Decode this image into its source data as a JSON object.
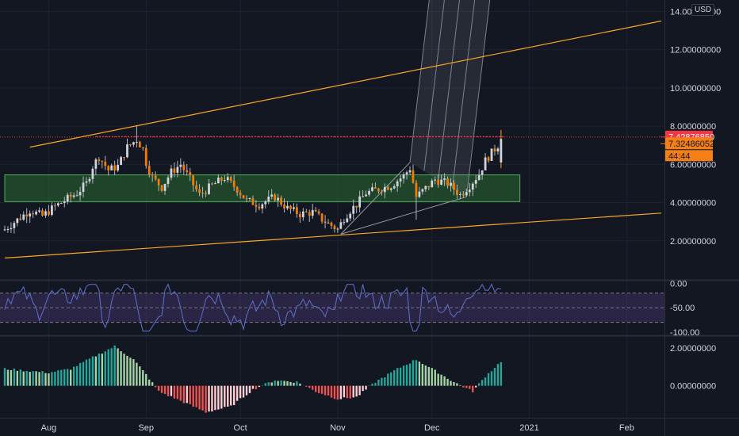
{
  "currency": "USD",
  "price_badges": {
    "last_price": "7.42876850",
    "prev_close": "7.32486052",
    "countdown": "44:44",
    "last_color": "#f23645",
    "prev_color": "#f57f17"
  },
  "chart_data": [
    {
      "type": "candlestick",
      "xticks": [
        "Aug",
        "Sep",
        "Oct",
        "Nov",
        "Dec",
        "2021",
        "Feb"
      ],
      "yticks": [
        "2.00000000",
        "4.00000000",
        "6.00000000",
        "8.00000000",
        "10.00000000",
        "12.00000000",
        "14.00000000"
      ],
      "ylim": [
        0,
        14.6
      ],
      "xrange": [
        "2020-07-18",
        "2021-02-10"
      ],
      "close_anchors": {
        "dates": [
          "2020-07-18",
          "2020-07-22",
          "2020-07-26",
          "2020-07-30",
          "2020-08-03",
          "2020-08-07",
          "2020-08-10",
          "2020-08-13",
          "2020-08-15",
          "2020-08-17",
          "2020-08-20",
          "2020-08-23",
          "2020-08-26",
          "2020-08-29",
          "2020-08-31",
          "2020-09-01",
          "2020-09-03",
          "2020-09-06",
          "2020-09-09",
          "2020-09-12",
          "2020-09-15",
          "2020-09-18",
          "2020-09-22",
          "2020-09-26",
          "2020-09-30",
          "2020-10-03",
          "2020-10-07",
          "2020-10-12",
          "2020-10-16",
          "2020-10-20",
          "2020-10-24",
          "2020-10-28",
          "2020-11-01",
          "2020-11-03",
          "2020-11-05",
          "2020-11-07",
          "2020-11-10",
          "2020-11-14",
          "2020-11-18",
          "2020-11-22",
          "2020-11-24",
          "2020-11-26",
          "2020-11-28",
          "2020-12-02",
          "2020-12-06",
          "2020-12-10",
          "2020-12-13",
          "2020-12-16",
          "2020-12-18",
          "2020-12-20",
          "2020-12-22",
          "2020-12-23"
        ],
        "values": [
          2.6,
          3.1,
          3.6,
          3.3,
          3.8,
          4.2,
          4.5,
          5.0,
          5.9,
          6.4,
          5.7,
          5.9,
          6.9,
          7.3,
          6.8,
          6.1,
          5.3,
          4.8,
          5.6,
          6.0,
          5.2,
          4.4,
          4.9,
          5.3,
          4.7,
          4.1,
          3.9,
          4.3,
          3.7,
          3.4,
          3.5,
          3.0,
          2.6,
          3.2,
          3.6,
          3.9,
          4.5,
          4.7,
          4.9,
          5.4,
          5.8,
          4.3,
          4.6,
          5.2,
          5.0,
          4.4,
          4.9,
          5.5,
          6.2,
          6.6,
          7.0,
          7.3
        ]
      },
      "last": {
        "open": 6.1,
        "high": 7.8,
        "low": 5.8,
        "close": 7.33
      },
      "horizontal_line": 7.4287685,
      "zone": [
        4.05,
        5.45
      ],
      "trendlines": [
        {
          "from": [
            "2020-07-26",
            6.9
          ],
          "to": [
            "2021-02-12",
            13.5
          ]
        },
        {
          "from": [
            "2020-07-18",
            1.1
          ],
          "to": [
            "2021-02-12",
            3.45
          ]
        },
        {
          "from": [
            "2020-08-16",
            7.45
          ],
          "to": [
            "2020-12-24",
            7.45
          ]
        }
      ],
      "pitchfork": {
        "pivots": [
          [
            "2020-11-24",
            6.1
          ],
          [
            "2020-11-02",
            2.35
          ],
          [
            "2020-12-12",
            4.3
          ]
        ],
        "end": "2021-02-12"
      }
    },
    {
      "type": "line",
      "yticks": [
        "0.00",
        "-50.00",
        "-100.00"
      ],
      "ylim": [
        -105,
        4
      ],
      "band": [
        -80,
        -20
      ],
      "series": [
        {
          "x": [],
          "values": []
        }
      ]
    },
    {
      "type": "bar",
      "yticks": [
        "2.00000000",
        "0.00000000"
      ],
      "ylim": [
        -1.7,
        2.6
      ],
      "hist_anchors": {
        "dates": [
          "2020-07-18",
          "2020-07-25",
          "2020-08-01",
          "2020-08-08",
          "2020-08-16",
          "2020-08-22",
          "2020-08-28",
          "2020-09-01",
          "2020-09-05",
          "2020-09-12",
          "2020-09-20",
          "2020-09-28",
          "2020-10-05",
          "2020-10-12",
          "2020-10-19",
          "2020-10-25",
          "2020-11-01",
          "2020-11-07",
          "2020-11-13",
          "2020-11-20",
          "2020-11-26",
          "2020-12-02",
          "2020-12-08",
          "2020-12-14",
          "2020-12-18",
          "2020-12-23"
        ],
        "values": [
          0.9,
          0.8,
          0.7,
          0.9,
          1.6,
          2.1,
          1.4,
          0.6,
          -0.3,
          -0.8,
          -1.4,
          -1.1,
          -0.2,
          0.3,
          0.2,
          -0.3,
          -0.7,
          -0.6,
          0.2,
          0.9,
          1.4,
          0.8,
          0.2,
          -0.3,
          0.5,
          1.3
        ]
      }
    }
  ]
}
